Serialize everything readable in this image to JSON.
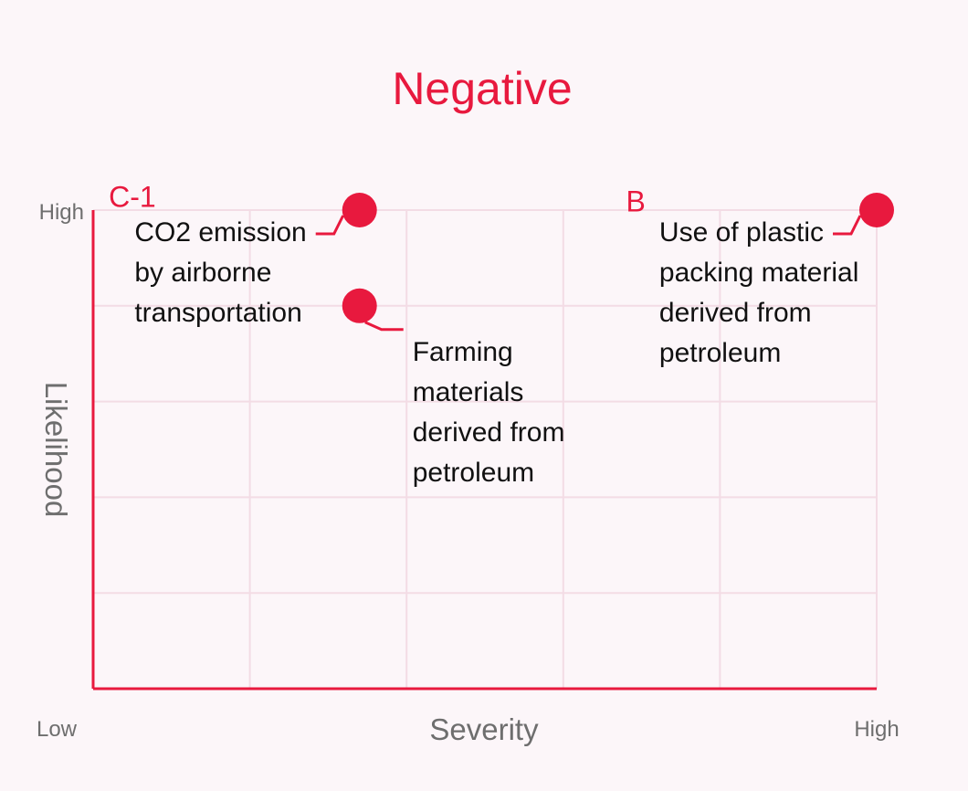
{
  "chart_data": {
    "type": "scatter",
    "title": "Negative",
    "xlabel": "Severity",
    "ylabel": "Likelihood",
    "x_tick_labels": [
      "Low",
      "High"
    ],
    "y_tick_labels": [
      "High"
    ],
    "xlim": [
      0,
      5
    ],
    "ylim": [
      0,
      5
    ],
    "grid": true,
    "accent_color": "#e8193e",
    "grid_color": "#f3dce5",
    "quadrant_labels": [
      {
        "label": "C-1",
        "x": 0.1,
        "y": 5.15
      },
      {
        "label": "B",
        "x": 3.4,
        "y": 5.1
      }
    ],
    "points": [
      {
        "x": 1.7,
        "y": 5.0,
        "label_lines": [
          "CO2 emission",
          "by airborne",
          "transportation"
        ],
        "label_side": "left"
      },
      {
        "x": 1.7,
        "y": 4.0,
        "label_lines": [
          "Farming",
          "materials",
          "derived from",
          "petroleum"
        ],
        "label_side": "right-below"
      },
      {
        "x": 5.0,
        "y": 5.0,
        "label_lines": [
          "Use of plastic",
          "packing material",
          "derived from",
          "petroleum"
        ],
        "label_side": "left"
      }
    ]
  }
}
